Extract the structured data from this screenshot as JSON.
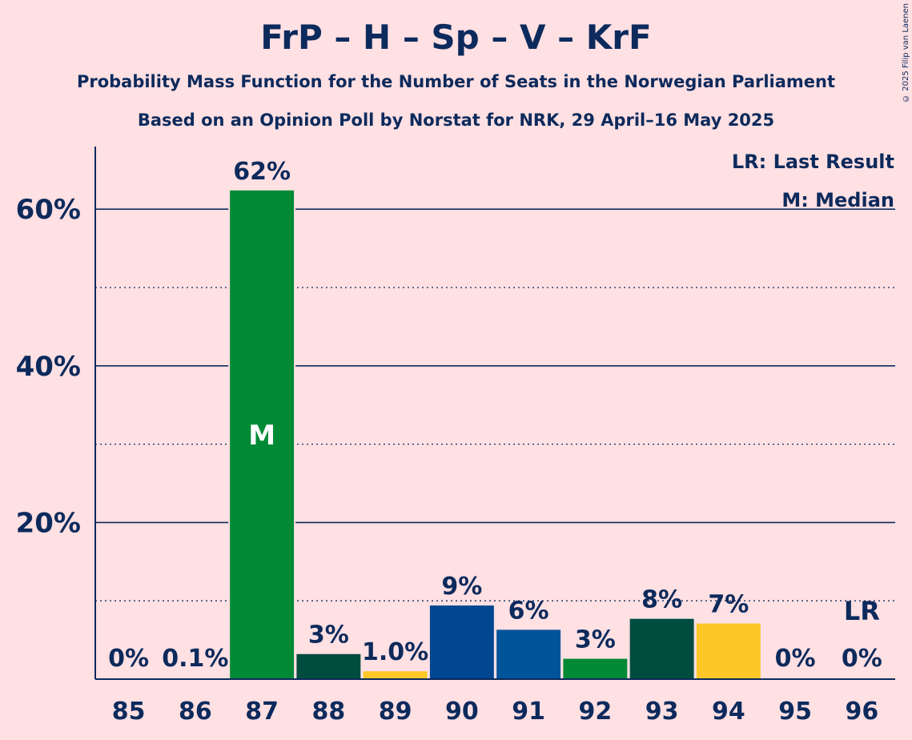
{
  "chart_data": {
    "type": "bar",
    "title": "FrP – H – Sp – V – KrF",
    "subtitle": "Probability Mass Function for the Number of Seats in the Norwegian Parliament",
    "subtitle2": "Based on an Opinion Poll by Norstat for NRK, 29 April–16 May 2025",
    "copyright": "© 2025 Filip van Laenen",
    "categories": [
      "85",
      "86",
      "87",
      "88",
      "89",
      "90",
      "91",
      "92",
      "93",
      "94",
      "95",
      "96"
    ],
    "values": [
      0,
      0.1,
      62.4,
      3.2,
      1.0,
      9.4,
      6.3,
      2.6,
      7.7,
      7.1,
      0,
      0
    ],
    "labels": [
      "0%",
      "0.1%",
      "62%",
      "3%",
      "1.0%",
      "9%",
      "6%",
      "3%",
      "8%",
      "7%",
      "0%",
      "0%"
    ],
    "bar_colors": [
      "#008a35",
      "#008a35",
      "#008a35",
      "#004c3f",
      "#fdc727",
      "#004690",
      "#00549a",
      "#008a35",
      "#004c3f",
      "#fdc727",
      "#008a35",
      "#008a35"
    ],
    "ylim": [
      0,
      68
    ],
    "yticks": [
      20,
      40,
      60
    ],
    "ytick_labels": [
      "20%",
      "40%",
      "60%"
    ],
    "minor_gridlines": [
      10,
      30,
      50
    ],
    "median_category": "87",
    "median_marker": "M",
    "last_result_category": "96",
    "last_result_marker": "LR",
    "legend": [
      "LR: Last Result",
      "M: Median"
    ],
    "legend_position": "top-right",
    "grid": true
  }
}
